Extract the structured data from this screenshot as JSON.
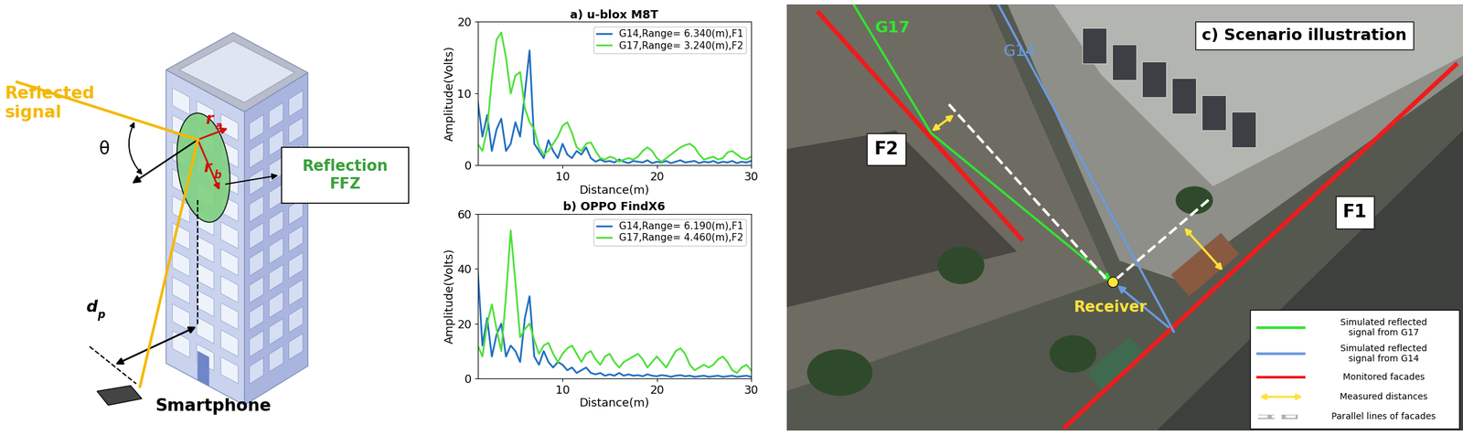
{
  "chart_data": [
    {
      "type": "line",
      "title": "a) u-blox M8T",
      "x_label": "Distance(m)",
      "y_label": "Amplitude(Volts)",
      "x": [
        1,
        1.5,
        2,
        2.5,
        3,
        3.5,
        4,
        4.5,
        5,
        5.5,
        6,
        6.5,
        7,
        7.5,
        8,
        8.5,
        9,
        9.5,
        10,
        10.5,
        11,
        11.5,
        12,
        12.5,
        13,
        13.5,
        14,
        14.5,
        15,
        15.5,
        16,
        16.5,
        17,
        17.5,
        18,
        18.5,
        19,
        19.5,
        20,
        20.5,
        21,
        21.5,
        22,
        22.5,
        23,
        23.5,
        24,
        24.5,
        25,
        25.5,
        26,
        26.5,
        27,
        27.5,
        28,
        28.5,
        29,
        29.5,
        30
      ],
      "series": [
        {
          "name": "G14,Range= 6.340(m),F1",
          "color": "#1f6fc0",
          "values": [
            9,
            4,
            7,
            2,
            5,
            6.5,
            2,
            3,
            6,
            4,
            10,
            16,
            3,
            2,
            1,
            3.5,
            2,
            1,
            3,
            1.5,
            1,
            2,
            1.5,
            2.5,
            1,
            0.5,
            0.8,
            0.5,
            0.6,
            0.4,
            0.8,
            0.5,
            0.3,
            0.6,
            0.5,
            0.4,
            0.7,
            0.3,
            0.5,
            0.4,
            0.6,
            0.3,
            0.5,
            0.7,
            0.4,
            0.5,
            0.6,
            0.3,
            0.5,
            0.4,
            0.6,
            0.3,
            0.5,
            0.4,
            0.6,
            0.3,
            0.5,
            0.4,
            0.6
          ]
        },
        {
          "name": "G17,Range= 3.240(m),F2",
          "color": "#4ee03a",
          "values": [
            3,
            2,
            5,
            12,
            17.5,
            18.5,
            15,
            10,
            12.5,
            13,
            8,
            6,
            5,
            2.5,
            1.5,
            2,
            3,
            4,
            5.5,
            6,
            4.5,
            2.5,
            2,
            3,
            3.2,
            2,
            1,
            0.8,
            1.2,
            1,
            0.5,
            0.8,
            1,
            0.8,
            1.2,
            2,
            2.5,
            2,
            1,
            0.5,
            1,
            1.5,
            2,
            2.5,
            2.8,
            3,
            2.5,
            1.5,
            0.8,
            1,
            1.2,
            0.8,
            1,
            1.8,
            2,
            1.5,
            1,
            0.8,
            1.2
          ]
        }
      ],
      "xlim": [
        1,
        30
      ],
      "xticks": [
        10,
        20,
        30
      ],
      "ylim": [
        0,
        20
      ],
      "yticks": [
        0,
        10,
        20
      ],
      "legend": "upper right"
    },
    {
      "type": "line",
      "title": "b) OPPO FindX6",
      "x_label": "Distance(m)",
      "y_label": "Amplitude(Volts)",
      "x": [
        1,
        1.5,
        2,
        2.5,
        3,
        3.5,
        4,
        4.5,
        5,
        5.5,
        6,
        6.5,
        7,
        7.5,
        8,
        8.5,
        9,
        9.5,
        10,
        10.5,
        11,
        11.5,
        12,
        12.5,
        13,
        13.5,
        14,
        14.5,
        15,
        15.5,
        16,
        16.5,
        17,
        17.5,
        18,
        18.5,
        19,
        19.5,
        20,
        20.5,
        21,
        21.5,
        22,
        22.5,
        23,
        23.5,
        24,
        24.5,
        25,
        25.5,
        26,
        26.5,
        27,
        27.5,
        28,
        28.5,
        29,
        29.5,
        30
      ],
      "series": [
        {
          "name": "G14,Range= 6.190(m),F1",
          "color": "#1f6fc0",
          "values": [
            40,
            12,
            22,
            8,
            16,
            20,
            8,
            12,
            10,
            6,
            22,
            30,
            8,
            5,
            10,
            6,
            4,
            6,
            5,
            3,
            4,
            2,
            3,
            4,
            2,
            1.5,
            2,
            1,
            1.5,
            1,
            2,
            1,
            1.5,
            1,
            1.2,
            0.8,
            1.5,
            1,
            0.8,
            1.2,
            1,
            0.6,
            1,
            1.2,
            0.8,
            1,
            0.6,
            0.8,
            1,
            0.6,
            0.8,
            1,
            0.6,
            0.8,
            1,
            0.6,
            0.8,
            1,
            0.6
          ]
        },
        {
          "name": "G17,Range= 4.460(m),F2",
          "color": "#4ee03a",
          "values": [
            12,
            8,
            20,
            27,
            18,
            10,
            30,
            54,
            35,
            15,
            18,
            20,
            14,
            9,
            12,
            13,
            9,
            6,
            9,
            11,
            12,
            9,
            6,
            9,
            10,
            7,
            5,
            8,
            9,
            6,
            4,
            6,
            7,
            8,
            9,
            7,
            4,
            6,
            8,
            6,
            4,
            7,
            10,
            11,
            9,
            5,
            3,
            4,
            5,
            4,
            5,
            7,
            8,
            6,
            3,
            2,
            4,
            5,
            3
          ]
        }
      ],
      "xlim": [
        1,
        30
      ],
      "xticks": [
        10,
        20,
        30
      ],
      "ylim": [
        0,
        60
      ],
      "yticks": [
        0,
        20,
        40,
        60
      ],
      "legend": "upper right"
    }
  ],
  "diagram": {
    "reflected_signal": "Reflected\nsignal",
    "theta": "θ",
    "r_a": {
      "symbol": "r",
      "subscript": "a"
    },
    "r_b": {
      "symbol": "r",
      "subscript": "b"
    },
    "ffz_label": "Reflection\nFFZ",
    "d_p": {
      "symbol": "d",
      "subscript": "p"
    },
    "smartphone": "Smartphone"
  },
  "scenario": {
    "title": "c) Scenario illustration",
    "labels": {
      "G17": "G17",
      "G14": "G14",
      "F1": "F1",
      "F2": "F2",
      "receiver": "Receiver"
    },
    "legend": [
      {
        "label": "Simulated reflected\nsignal from G17",
        "color": "#2ee82e",
        "line_style": "solid"
      },
      {
        "label": "Simulated reflected\nsignal from G14",
        "color": "#6a9be0",
        "line_style": "solid"
      },
      {
        "label": "Monitored facades",
        "color": "#ee1c1c",
        "line_style": "solid"
      },
      {
        "label": "Measured distances",
        "color": "#ffe23a",
        "line_style": "double-arrow"
      },
      {
        "label": "Parallel lines of facades",
        "color": "#ffffff",
        "line_style": "dashed"
      }
    ]
  }
}
